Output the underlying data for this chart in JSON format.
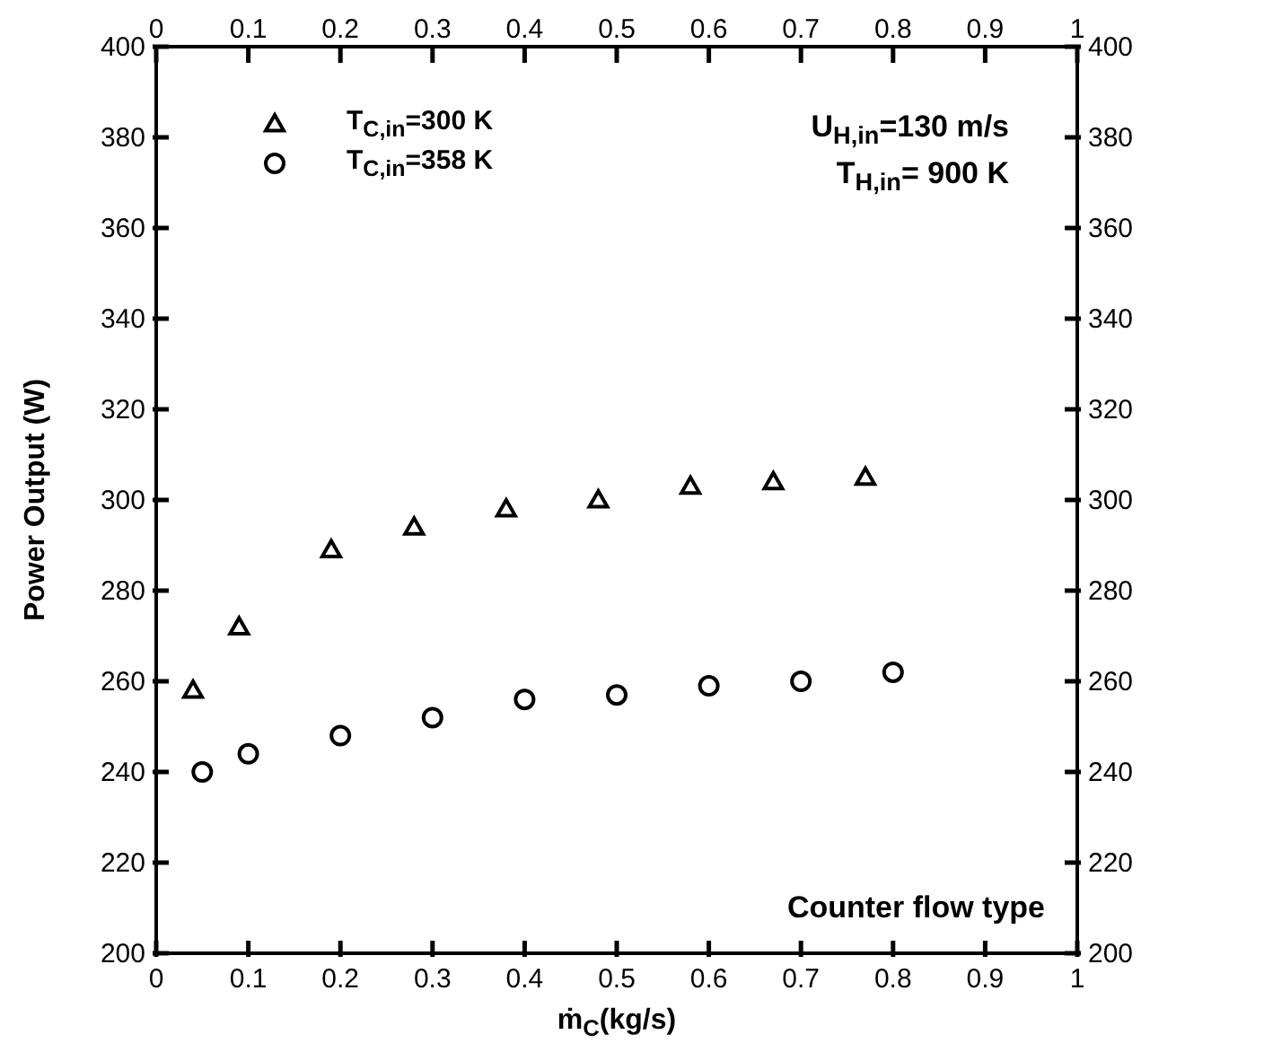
{
  "chart_data": {
    "type": "scatter",
    "xlabel": "ṁ$_{C}$(kg/s)",
    "ylabel": "Power Output (W)",
    "xlim": [
      0,
      1
    ],
    "xticks": [
      0,
      0.1,
      0.2,
      0.3,
      0.4,
      0.5,
      0.6,
      0.7,
      0.8,
      0.9,
      1
    ],
    "x2lim": [
      0,
      1
    ],
    "x2ticks": [
      0,
      0.1,
      0.2,
      0.3,
      0.4,
      0.5,
      0.6,
      0.7,
      0.8,
      0.9,
      1
    ],
    "ylim": [
      200,
      400
    ],
    "yticks": [
      200,
      220,
      240,
      260,
      280,
      300,
      320,
      340,
      360,
      380,
      400
    ],
    "y2lim": [
      200,
      400
    ],
    "y2ticks": [
      200,
      220,
      240,
      260,
      280,
      300,
      320,
      340,
      360,
      380,
      400
    ],
    "grid": false,
    "legend": "top left",
    "annotations": [
      "U$_{H,in}$=130 m/s",
      "T$_{H,in}$= 900 K",
      "Counter flow type"
    ],
    "series": [
      {
        "name": "T$_{C,in}$=300 K",
        "color": "#000000",
        "marker": "triangle",
        "x": [
          0.04,
          0.09,
          0.19,
          0.28,
          0.38,
          0.48,
          0.58,
          0.67,
          0.77
        ],
        "values": [
          258,
          272,
          289,
          294,
          298,
          300,
          303,
          304,
          305
        ]
      },
      {
        "name": "T$_{C,in}$=358 K",
        "color": "#000000",
        "marker": "circle",
        "x": [
          0.05,
          0.1,
          0.2,
          0.3,
          0.4,
          0.5,
          0.6,
          0.7,
          0.8
        ],
        "values": [
          240,
          244,
          248,
          252,
          256,
          257,
          259,
          260,
          262
        ]
      }
    ]
  }
}
